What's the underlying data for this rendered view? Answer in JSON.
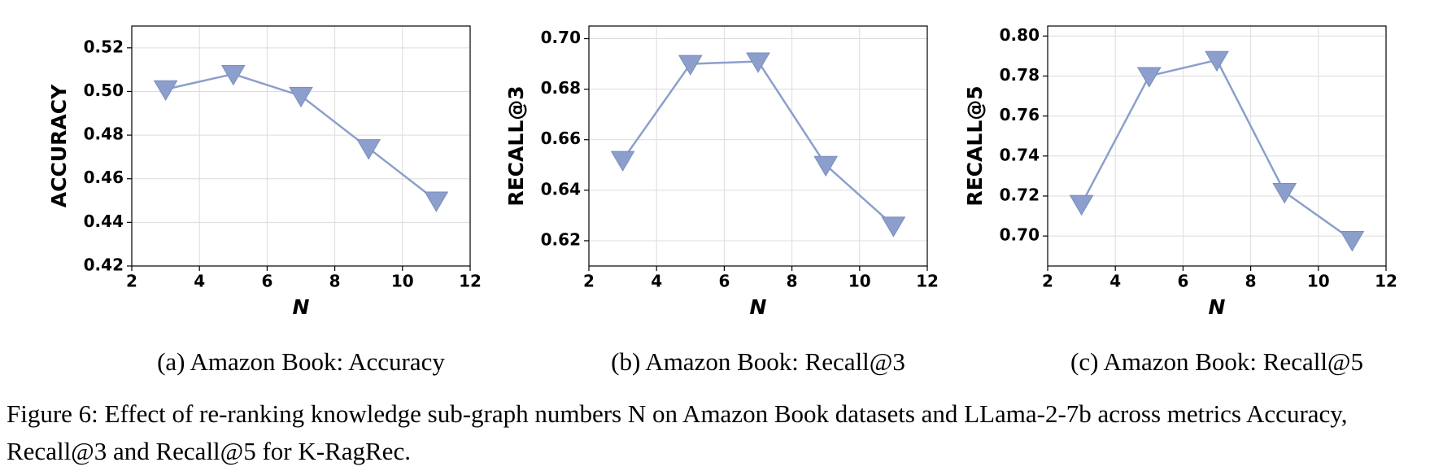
{
  "chart_data": [
    {
      "type": "line",
      "caption": "(a) Amazon Book: Accuracy",
      "xlabel": "N",
      "ylabel": "ACCURACY",
      "x": [
        3,
        5,
        7,
        9,
        11
      ],
      "values": [
        0.501,
        0.508,
        0.498,
        0.474,
        0.45
      ],
      "color": "#8c9fcc",
      "xlim": [
        2,
        12
      ],
      "xticks": [
        2,
        4,
        6,
        8,
        10,
        12
      ],
      "ylim": [
        0.42,
        0.53
      ],
      "yticks": [
        0.42,
        0.44,
        0.46,
        0.48,
        {
          "value": 0.5,
          "label": "0.50"
        },
        0.52
      ],
      "grid": true
    },
    {
      "type": "line",
      "caption": "(b) Amazon Book: Recall@3",
      "xlabel": "N",
      "ylabel": "RECALL@3",
      "x": [
        3,
        5,
        7,
        9,
        11
      ],
      "values": [
        0.652,
        0.69,
        0.691,
        0.65,
        0.626
      ],
      "color": "#8c9fcc",
      "xlim": [
        2,
        12
      ],
      "xticks": [
        2,
        4,
        6,
        8,
        10,
        12
      ],
      "ylim": [
        0.61,
        0.705
      ],
      "yticks": [
        0.62,
        0.64,
        0.66,
        0.68,
        {
          "value": 0.7,
          "label": "0.70"
        }
      ],
      "grid": true
    },
    {
      "type": "line",
      "caption": "(c) Amazon Book: Recall@5",
      "xlabel": "N",
      "ylabel": "RECALL@5",
      "x": [
        3,
        5,
        7,
        9,
        11
      ],
      "values": [
        0.716,
        0.78,
        0.788,
        0.722,
        0.698
      ],
      "color": "#8c9fcc",
      "xlim": [
        2,
        12
      ],
      "xticks": [
        2,
        4,
        6,
        8,
        10,
        12
      ],
      "ylim": [
        0.685,
        0.805
      ],
      "yticks": [
        {
          "value": 0.7,
          "label": "0.70"
        },
        0.72,
        0.74,
        0.76,
        0.78,
        {
          "value": 0.8,
          "label": "0.80"
        }
      ],
      "grid": true
    }
  ],
  "figure_caption": "Figure 6: Effect of re-ranking knowledge sub-graph numbers N on Amazon Book datasets and LLama-2-7b across metrics Accuracy, Recall@3 and Recall@5 for K-RagRec."
}
